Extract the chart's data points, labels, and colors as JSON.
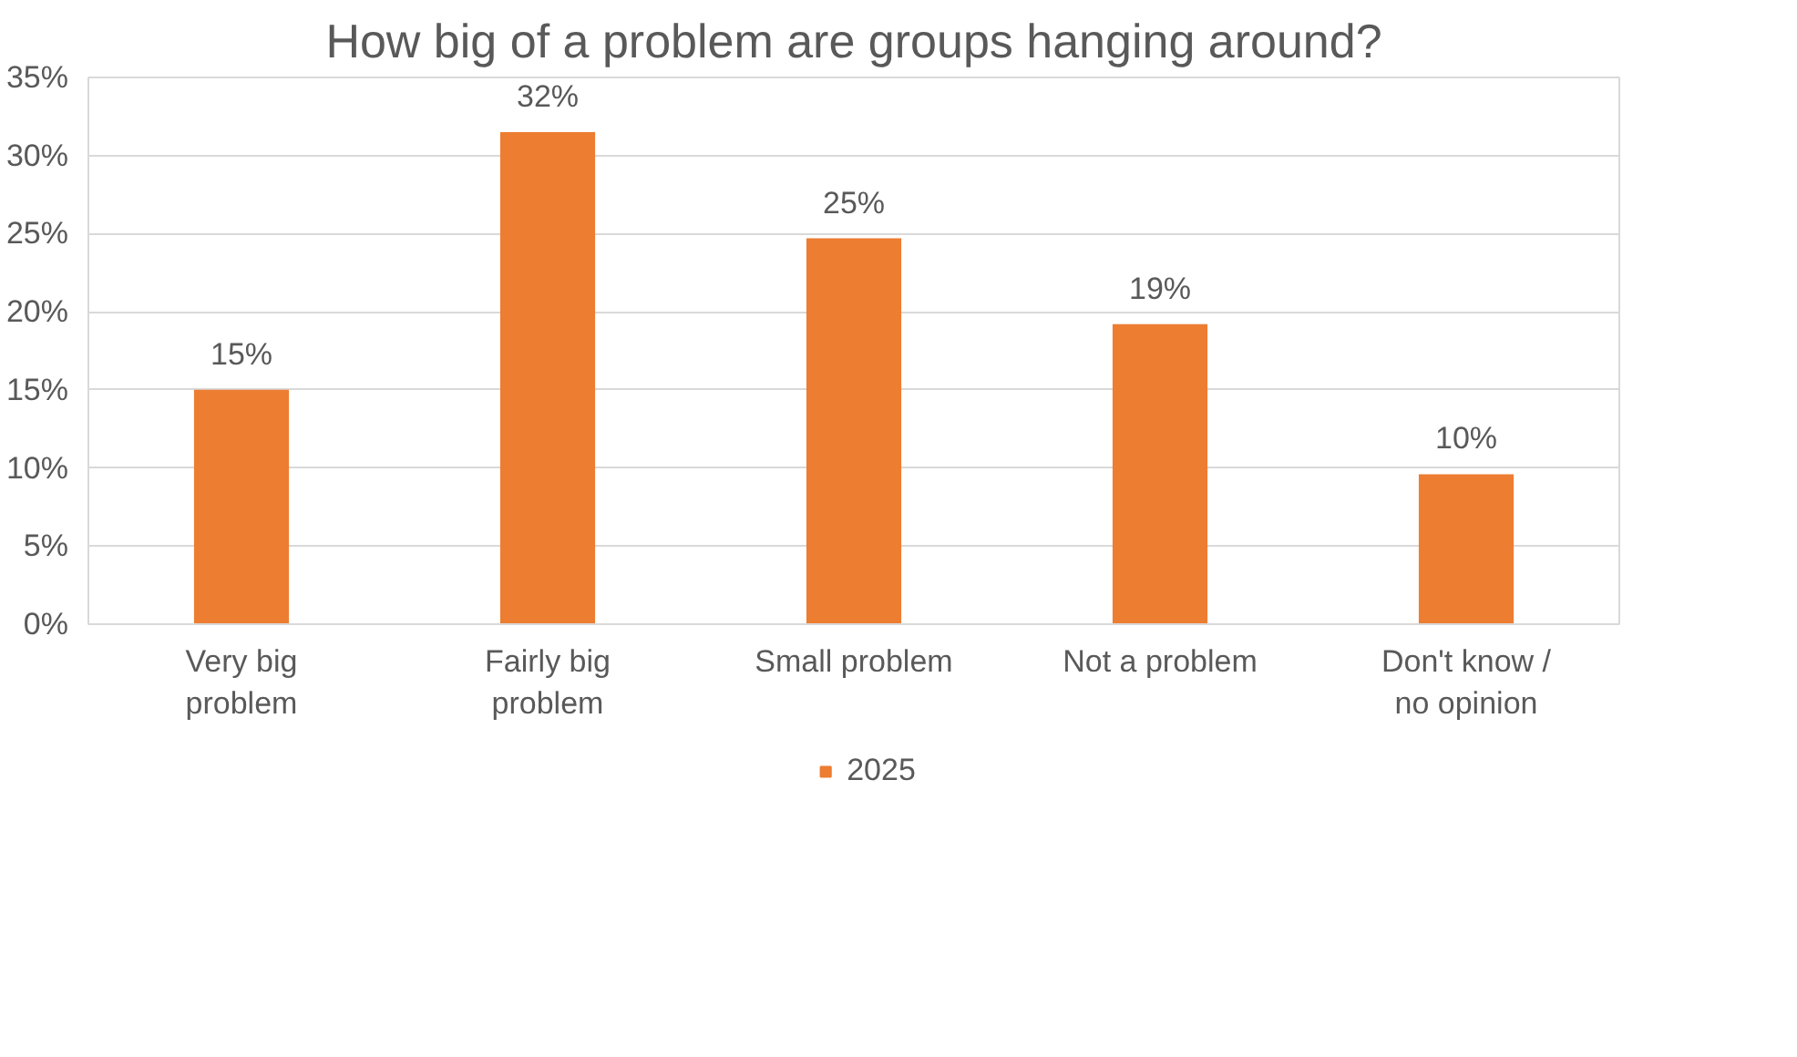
{
  "chart_data": {
    "type": "bar",
    "title": "How big of a problem are groups hanging around?",
    "categories": [
      "Very big problem",
      "Fairly big problem",
      "Small problem",
      "Not a problem",
      "Don't know / no opinion"
    ],
    "series": [
      {
        "name": "2025",
        "color": "#ed7d31",
        "values": [
          15,
          31.5,
          24.7,
          19.2,
          9.6
        ],
        "value_labels": [
          "15%",
          "32%",
          "25%",
          "19%",
          "10%"
        ]
      }
    ],
    "ylim": [
      0,
      35
    ],
    "yticks": [
      {
        "value": 0,
        "label": "0%"
      },
      {
        "value": 5,
        "label": "5%"
      },
      {
        "value": 10,
        "label": "10%"
      },
      {
        "value": 15,
        "label": "15%"
      },
      {
        "value": 20,
        "label": "20%"
      },
      {
        "value": 25,
        "label": "25%"
      },
      {
        "value": 30,
        "label": "30%"
      },
      {
        "value": 35,
        "label": "35%"
      }
    ],
    "grid": "y",
    "legend": "bottom"
  }
}
